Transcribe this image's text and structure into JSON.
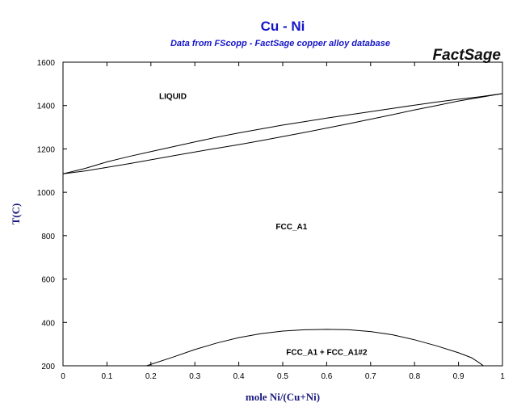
{
  "chart_data": {
    "type": "line",
    "title": "Cu - Ni",
    "subtitle": "Data from FScopp - FactSage copper alloy database",
    "brand": "FactSage",
    "xlabel": "mole Ni/(Cu+Ni)",
    "ylabel": "T(C)",
    "xlim": [
      0,
      1
    ],
    "ylim": [
      200,
      1600
    ],
    "x_ticks": [
      "0",
      "0.1",
      "0.2",
      "0.3",
      "0.4",
      "0.5",
      "0.6",
      "0.7",
      "0.8",
      "0.9",
      "1"
    ],
    "y_ticks": [
      "200",
      "400",
      "600",
      "800",
      "1000",
      "1200",
      "1400",
      "1600"
    ],
    "grid": false,
    "colors": {
      "title": "#1515c8",
      "axis_title": "#1a1a80",
      "lines": "#000000"
    },
    "series": [
      {
        "x": [
          0,
          0.05,
          0.1,
          0.15,
          0.2,
          0.25,
          0.3,
          0.35,
          0.4,
          0.45,
          0.5,
          0.55,
          0.6,
          0.65,
          0.7,
          0.75,
          0.8,
          0.85,
          0.9,
          0.95,
          1.0
        ],
        "y": [
          1085,
          1110,
          1140,
          1165,
          1188,
          1210,
          1232,
          1254,
          1274,
          1292,
          1310,
          1326,
          1342,
          1357,
          1372,
          1387,
          1402,
          1416,
          1429,
          1441,
          1455
        ]
      },
      {
        "x": [
          0,
          0.05,
          0.1,
          0.15,
          0.2,
          0.25,
          0.3,
          0.35,
          0.4,
          0.45,
          0.5,
          0.55,
          0.6,
          0.65,
          0.7,
          0.75,
          0.8,
          0.85,
          0.9,
          0.95,
          1.0
        ],
        "y": [
          1085,
          1098,
          1115,
          1132,
          1150,
          1168,
          1186,
          1203,
          1220,
          1238,
          1257,
          1276,
          1296,
          1316,
          1337,
          1358,
          1380,
          1400,
          1421,
          1438,
          1455
        ]
      },
      {
        "x": [
          0.19,
          0.25,
          0.3,
          0.35,
          0.4,
          0.45,
          0.5,
          0.55,
          0.6,
          0.65,
          0.7,
          0.75,
          0.8,
          0.85,
          0.9,
          0.93,
          0.95,
          0.97
        ],
        "y": [
          200,
          240,
          275,
          305,
          330,
          348,
          360,
          366,
          368,
          366,
          358,
          343,
          320,
          292,
          260,
          237,
          210,
          180
        ]
      }
    ],
    "annotations": [
      {
        "text": "LIQUID",
        "x": 0.25,
        "y": 1430
      },
      {
        "text": "FCC_A1",
        "x": 0.52,
        "y": 830
      },
      {
        "text": "FCC_A1 + FCC_A1#2",
        "x": 0.6,
        "y": 250
      }
    ]
  }
}
